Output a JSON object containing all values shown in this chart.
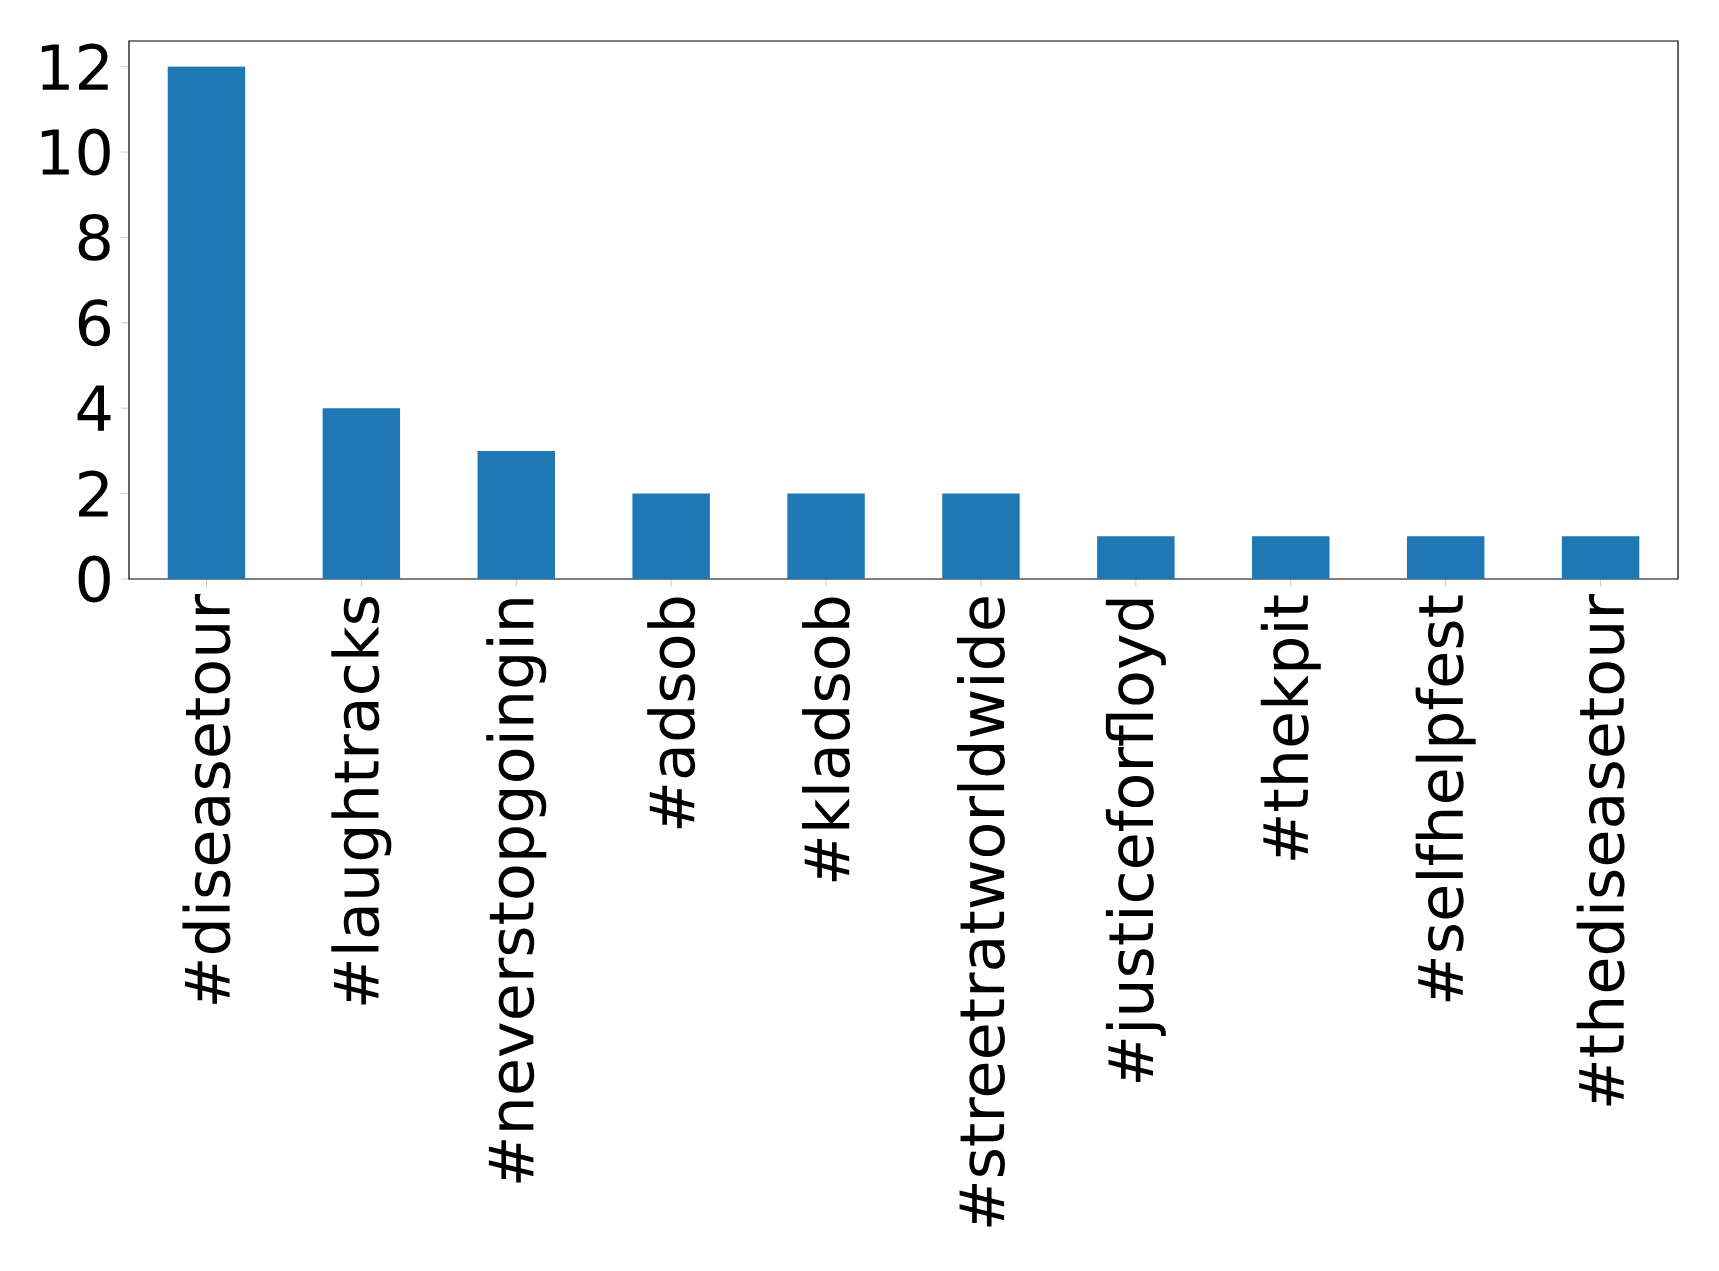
{
  "chart_data": {
    "type": "bar",
    "categories": [
      "#diseasetour",
      "#laughtracks",
      "#neverstopgoingin",
      "#adsob",
      "#kladsob",
      "#streetratworldwide",
      "#justiceforfloyd",
      "#thekpit",
      "#selfhelpfest",
      "#thediseasetour"
    ],
    "values": [
      12,
      4,
      3,
      2,
      2,
      2,
      1,
      1,
      1,
      1
    ],
    "color": "#1f77b4",
    "ylim": [
      0,
      12.6
    ],
    "yticks": [
      0,
      2,
      4,
      6,
      8,
      10,
      12
    ]
  }
}
